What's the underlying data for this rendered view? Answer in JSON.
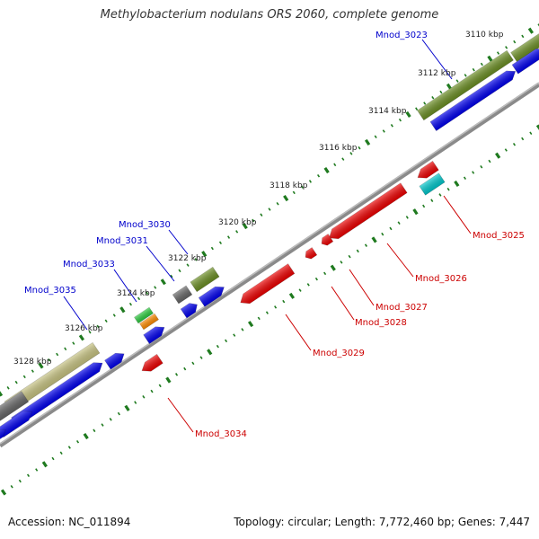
{
  "title": "Methylobacterium nodulans ORS 2060, complete genome",
  "accession_text": "Accession: NC_011894",
  "summary_text": "Topology: circular; Length: 7,772,460 bp; Genes: 7,447",
  "colors": {
    "backbone": "#888888",
    "tick_marks": "#1f7a1f",
    "forward_label": "#0000cc",
    "reverse_label": "#cc0000",
    "forward_cds": "#0000ee",
    "reverse_cds": "#ee0000",
    "olive_feature": "#6b8e23",
    "khaki_feature": "#c8c482",
    "gray_feature": "#666666",
    "green_feature": "#2ecc40",
    "orange_feature": "#ff8c00",
    "cyan_feature": "#00c8cc"
  },
  "kbp_ticks": [
    "3110 kbp",
    "3112 kbp",
    "3114 kbp",
    "3116 kbp",
    "3118 kbp",
    "3120 kbp",
    "3122 kbp",
    "3124 kbp",
    "3126 kbp",
    "3128 kbp"
  ],
  "forward_genes": [
    "Mnod_3023",
    "Mnod_3030",
    "Mnod_3031",
    "Mnod_3033",
    "Mnod_3035"
  ],
  "reverse_genes": [
    "Mnod_3025",
    "Mnod_3026",
    "Mnod_3027",
    "Mnod_3028",
    "Mnod_3029",
    "Mnod_3034"
  ]
}
